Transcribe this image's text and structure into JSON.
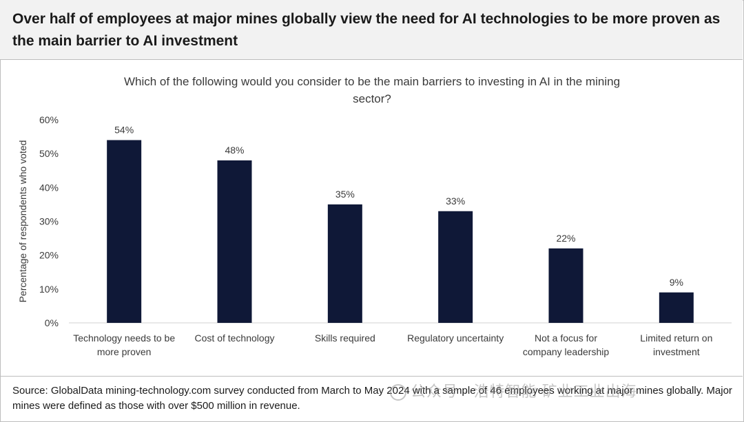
{
  "header": {
    "title": "Over half of employees at major mines globally view the need for AI technologies to be more proven as the main barrier to AI investment"
  },
  "chart_data": {
    "type": "bar",
    "title": "Which of the following would you consider to be the main barriers to investing in AI in the mining sector?",
    "title_lines": [
      "Which of the following would you consider to be the main barriers to investing in AI in the mining",
      "sector?"
    ],
    "ylabel": "Percentage of respondents who voted",
    "xlabel": "",
    "ylim": [
      0,
      60
    ],
    "yticks": [
      "0%",
      "10%",
      "20%",
      "30%",
      "40%",
      "50%",
      "60%"
    ],
    "ytick_values": [
      0,
      10,
      20,
      30,
      40,
      50,
      60
    ],
    "categories": [
      [
        "Technology needs to be",
        "more proven"
      ],
      [
        "Cost of technology"
      ],
      [
        "Skills required"
      ],
      [
        "Regulatory uncertainty"
      ],
      [
        "Not a focus for",
        "company leadership"
      ],
      [
        "Limited return on",
        "investment"
      ]
    ],
    "values": [
      54,
      48,
      35,
      33,
      22,
      9
    ],
    "value_labels": [
      "54%",
      "48%",
      "35%",
      "33%",
      "22%",
      "9%"
    ],
    "bar_color": "#0f1837",
    "grid": false,
    "legend": "none"
  },
  "footer": {
    "source": "Source: GlobalData mining-technology.com survey conducted from March to May 2024 with a sample of 46 employees working at major mines globally. Major mines were defined as those with over $500 million in revenue."
  },
  "watermark": {
    "text": "公众号 · 浩特智能 矿业工业出海",
    "icon": "wechat-icon"
  }
}
